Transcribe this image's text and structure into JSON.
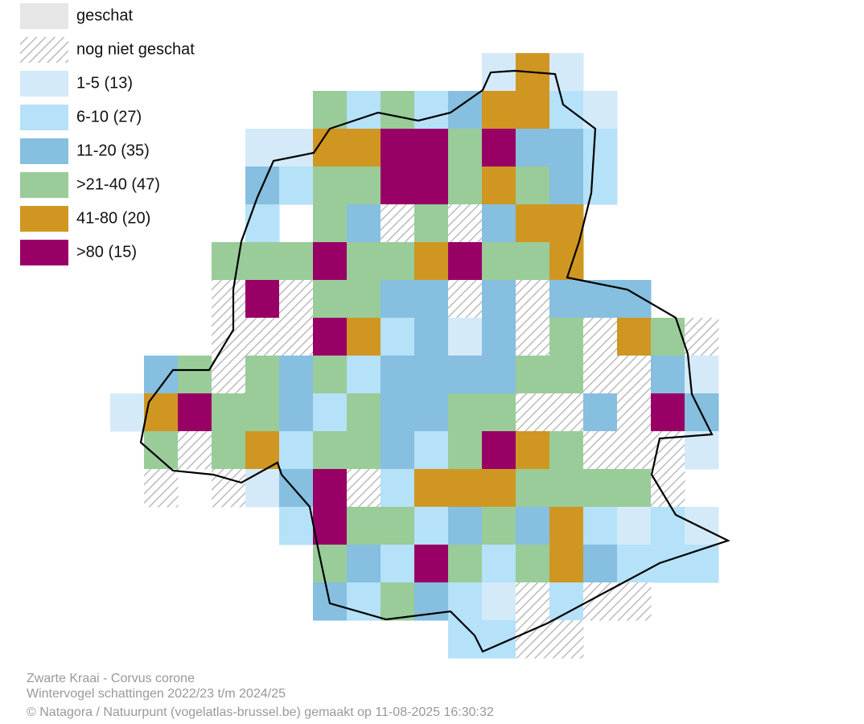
{
  "legend": [
    {
      "label": "geschat",
      "color": "#e6e6e6"
    },
    {
      "label": "nog niet geschat",
      "color": "hatch"
    },
    {
      "label": "1-5 (13)",
      "color": "#d4eaf9"
    },
    {
      "label": "6-10 (27)",
      "color": "#b5e1f9"
    },
    {
      "label": "11-20 (35)",
      "color": "#86bfdf"
    },
    {
      "label": ">21-40 (47)",
      "color": "#99cc99"
    },
    {
      "label": "41-80 (20)",
      "color": "#d09622"
    },
    {
      "label": ">80 (15)",
      "color": "#990066"
    }
  ],
  "grid": [
    [
      null,
      null,
      null,
      null,
      null,
      null,
      null,
      null,
      null,
      null,
      null,
      2,
      6,
      2,
      null,
      null,
      null,
      null,
      null
    ],
    [
      null,
      null,
      null,
      null,
      null,
      null,
      5,
      3,
      5,
      3,
      4,
      6,
      6,
      3,
      2,
      null,
      null,
      null,
      null
    ],
    [
      null,
      null,
      null,
      null,
      2,
      2,
      6,
      6,
      7,
      7,
      5,
      7,
      4,
      4,
      3,
      null,
      null,
      null,
      null
    ],
    [
      null,
      null,
      null,
      null,
      4,
      3,
      5,
      5,
      7,
      7,
      5,
      6,
      5,
      4,
      3,
      null,
      null,
      null,
      null
    ],
    [
      null,
      null,
      null,
      null,
      3,
      null,
      5,
      4,
      1,
      5,
      1,
      4,
      6,
      6,
      null,
      null,
      null,
      null,
      null
    ],
    [
      null,
      null,
      null,
      5,
      5,
      5,
      7,
      5,
      5,
      6,
      7,
      5,
      5,
      6,
      null,
      null,
      null,
      null,
      null
    ],
    [
      null,
      null,
      null,
      1,
      7,
      1,
      5,
      5,
      4,
      4,
      1,
      4,
      1,
      4,
      4,
      4,
      null,
      null,
      null
    ],
    [
      null,
      null,
      null,
      1,
      1,
      1,
      7,
      6,
      3,
      4,
      2,
      4,
      1,
      5,
      1,
      6,
      5,
      1,
      null
    ],
    [
      null,
      4,
      5,
      1,
      5,
      4,
      5,
      3,
      4,
      4,
      4,
      4,
      5,
      5,
      1,
      1,
      4,
      2,
      null
    ],
    [
      2,
      6,
      7,
      5,
      5,
      4,
      3,
      5,
      4,
      4,
      5,
      5,
      1,
      1,
      4,
      1,
      7,
      4,
      null
    ],
    [
      null,
      5,
      1,
      5,
      6,
      3,
      5,
      5,
      4,
      3,
      5,
      7,
      6,
      5,
      1,
      1,
      1,
      2,
      null
    ],
    [
      null,
      1,
      null,
      1,
      2,
      4,
      7,
      1,
      3,
      6,
      6,
      6,
      5,
      5,
      5,
      5,
      1,
      null,
      null
    ],
    [
      null,
      null,
      null,
      null,
      null,
      3,
      7,
      5,
      5,
      3,
      4,
      5,
      4,
      6,
      3,
      2,
      3,
      2,
      null
    ],
    [
      null,
      null,
      null,
      null,
      null,
      null,
      5,
      4,
      3,
      7,
      5,
      3,
      5,
      6,
      4,
      3,
      3,
      3,
      null
    ],
    [
      null,
      null,
      null,
      null,
      null,
      null,
      4,
      3,
      5,
      4,
      3,
      2,
      1,
      3,
      1,
      1,
      null,
      null,
      null
    ],
    [
      null,
      null,
      null,
      null,
      null,
      null,
      null,
      null,
      null,
      null,
      3,
      3,
      1,
      1,
      null,
      null,
      null,
      null,
      null
    ]
  ],
  "footer": [
    "Zwarte Kraai - Corvus corone",
    "Wintervogel schattingen 2022/23 t/m 2024/25",
    "© Natagora / Natuurpunt (vogelatlas-brussel.be) gemaakt op 11-08-2025 16:30:32"
  ]
}
